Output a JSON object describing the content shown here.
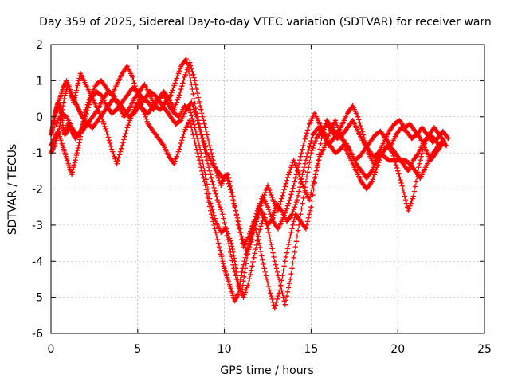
{
  "chart_data": {
    "type": "scatter",
    "title": "Day 359 of 2025, Sidereal Day-to-day VTEC variation (SDTVAR) for receiver warn",
    "xlabel": "GPS time / hours",
    "ylabel": "SDTVAR / TECUs",
    "xlim": [
      0,
      25
    ],
    "ylim": [
      -6,
      2
    ],
    "xticks": [
      "0",
      "5",
      "10",
      "15",
      "20",
      "25"
    ],
    "yticks": [
      "-6",
      "-5",
      "-4",
      "-3",
      "-2",
      "-1",
      "0",
      "1",
      "2"
    ],
    "grid": true,
    "marker": "plus",
    "color": "#ff0000",
    "series": [
      {
        "x": [
          0.0,
          0.1,
          0.2,
          0.3,
          0.4,
          0.5,
          0.6,
          0.7,
          0.8,
          0.9,
          1.0,
          1.2,
          1.4,
          1.6,
          1.8,
          2.0,
          2.3,
          2.6,
          2.9,
          3.2,
          3.5,
          3.8,
          4.1,
          4.4,
          4.7,
          5.0,
          5.3,
          5.6,
          5.9,
          6.2,
          6.5,
          6.8,
          7.1,
          7.4,
          7.7,
          8.0,
          8.3,
          8.6,
          8.9,
          9.2,
          9.5,
          9.8,
          10.1,
          10.4,
          10.6,
          10.8,
          11.0,
          11.2,
          11.5,
          11.8,
          12.0,
          12.2,
          12.5,
          12.8,
          13.0,
          13.3,
          13.6,
          13.9,
          14.2,
          14.5,
          14.8,
          15.1,
          15.4,
          15.7,
          16.0,
          16.3,
          16.6,
          16.9,
          17.2,
          17.5,
          17.8,
          18.1,
          18.4,
          18.7,
          19.0,
          19.3,
          19.6,
          19.9,
          20.2,
          20.5,
          20.8,
          21.1,
          21.4,
          21.7,
          22.0,
          22.3,
          22.6,
          22.9
        ],
        "y": [
          -0.5,
          -0.3,
          0.0,
          0.2,
          0.4,
          0.3,
          0.1,
          -0.3,
          -0.5,
          -0.4,
          -0.2,
          -0.4,
          -0.6,
          -0.5,
          -0.3,
          0.0,
          0.5,
          0.7,
          0.6,
          0.3,
          0.1,
          0.2,
          0.4,
          0.6,
          0.8,
          0.7,
          0.5,
          0.4,
          0.2,
          0.5,
          0.6,
          0.3,
          0.1,
          0.0,
          0.3,
          0.2,
          -0.3,
          -0.9,
          -1.6,
          -2.4,
          -2.9,
          -3.2,
          -3.1,
          -3.5,
          -4.0,
          -4.6,
          -4.9,
          -4.2,
          -3.4,
          -2.9,
          -2.5,
          -2.7,
          -3.0,
          -2.8,
          -2.4,
          -2.6,
          -2.9,
          -2.7,
          -2.3,
          -1.6,
          -1.0,
          -0.5,
          -0.3,
          -0.5,
          -0.8,
          -0.6,
          -0.4,
          -0.7,
          -0.9,
          -1.2,
          -1.1,
          -0.9,
          -0.7,
          -0.5,
          -0.4,
          -0.6,
          -0.8,
          -0.5,
          -0.3,
          -0.4,
          -0.6,
          -0.5,
          -0.3,
          -0.5,
          -0.7,
          -0.6,
          -0.4,
          -0.6
        ]
      },
      {
        "x": [
          0.0,
          0.2,
          0.4,
          0.6,
          0.8,
          1.0,
          1.2,
          1.4,
          1.6,
          1.8,
          2.0,
          2.3,
          2.6,
          2.9,
          3.2,
          3.5,
          3.8,
          4.1,
          4.4,
          4.7,
          5.0,
          5.3,
          5.6,
          5.9,
          6.2,
          6.5,
          6.8,
          7.1,
          7.4,
          7.7,
          8.0,
          8.3,
          8.6,
          8.9,
          9.2,
          9.5,
          9.8,
          10.0,
          10.2,
          10.4,
          10.6,
          10.8,
          11.0,
          11.3,
          11.6,
          11.9,
          12.2,
          12.5,
          12.8,
          13.1,
          13.4,
          13.7,
          14.0,
          14.3,
          14.6,
          14.9,
          15.2,
          15.5,
          15.8,
          16.1,
          16.4,
          16.7,
          17.0,
          17.3,
          17.6,
          17.9,
          18.2,
          18.5,
          18.8,
          19.1,
          19.4,
          19.7,
          20.0,
          20.3,
          20.6,
          20.9,
          21.2,
          21.5,
          21.8,
          22.1,
          22.4,
          22.7
        ],
        "y": [
          -0.8,
          -0.6,
          -0.4,
          -0.7,
          -1.0,
          -1.3,
          -1.6,
          -1.2,
          -0.8,
          -0.3,
          0.2,
          0.6,
          0.9,
          1.0,
          0.8,
          0.6,
          0.9,
          1.2,
          1.4,
          1.1,
          0.6,
          0.2,
          -0.2,
          -0.4,
          -0.6,
          -0.8,
          -1.1,
          -1.3,
          -0.9,
          -0.4,
          -0.1,
          -0.7,
          -1.3,
          -1.9,
          -2.6,
          -3.2,
          -3.8,
          -4.2,
          -4.5,
          -4.8,
          -5.1,
          -4.9,
          -4.3,
          -3.7,
          -3.1,
          -2.6,
          -2.2,
          -2.5,
          -2.9,
          -3.1,
          -2.8,
          -2.4,
          -1.9,
          -1.3,
          -0.7,
          -0.2,
          0.1,
          -0.2,
          -0.5,
          -0.8,
          -1.0,
          -0.9,
          -0.7,
          -1.0,
          -1.3,
          -1.5,
          -1.7,
          -1.5,
          -1.2,
          -1.0,
          -0.8,
          -0.9,
          -1.1,
          -1.3,
          -1.5,
          -1.2,
          -1.0,
          -0.7,
          -0.5,
          -0.6,
          -0.8,
          -0.7
        ]
      },
      {
        "x": [
          0.0,
          0.2,
          0.4,
          0.6,
          0.8,
          1.0,
          1.2,
          1.4,
          1.6,
          1.8,
          2.1,
          2.4,
          2.7,
          3.0,
          3.3,
          3.6,
          3.9,
          4.2,
          4.5,
          4.8,
          5.1,
          5.4,
          5.7,
          6.0,
          6.3,
          6.6,
          6.9,
          7.2,
          7.5,
          7.8,
          8.1,
          8.4,
          8.7,
          9.0,
          9.3,
          9.6,
          9.9,
          10.2,
          10.5,
          10.8,
          11.1,
          11.4,
          11.7,
          12.0,
          12.3,
          12.6,
          12.9,
          13.2,
          13.5,
          13.8,
          14.1,
          14.4,
          14.7,
          15.0,
          15.3,
          15.6,
          15.9,
          16.2,
          16.5,
          16.8,
          17.1,
          17.4,
          17.7,
          18.0,
          18.3,
          18.6,
          18.9,
          19.2,
          19.5,
          19.8,
          20.1,
          20.4,
          20.7,
          21.0,
          21.3,
          21.6,
          21.9,
          22.2,
          22.5,
          22.8
        ],
        "y": [
          -1.0,
          -0.8,
          -0.5,
          0.0,
          0.6,
          0.9,
          0.6,
          0.4,
          0.2,
          0.0,
          -0.2,
          -0.3,
          -0.1,
          0.1,
          0.3,
          0.5,
          0.4,
          0.2,
          0.0,
          0.1,
          0.3,
          0.5,
          0.7,
          0.6,
          0.4,
          0.2,
          0.0,
          -0.2,
          -0.1,
          0.2,
          0.4,
          0.0,
          -0.6,
          -1.2,
          -1.8,
          -2.3,
          -2.7,
          -3.4,
          -4.1,
          -4.7,
          -5.0,
          -4.6,
          -3.9,
          -3.2,
          -2.7,
          -3.3,
          -4.0,
          -4.6,
          -5.2,
          -4.5,
          -3.6,
          -2.7,
          -1.8,
          -1.0,
          -0.6,
          -0.4,
          -0.2,
          -0.4,
          -0.6,
          -0.5,
          -0.3,
          -0.1,
          -0.4,
          -0.7,
          -0.9,
          -1.1,
          -1.0,
          -1.1,
          -1.2,
          -1.2,
          -1.2,
          -1.2,
          -1.3,
          -1.5,
          -1.7,
          -1.4,
          -1.1,
          -0.9,
          -0.7,
          -0.8
        ]
      },
      {
        "x": [
          0.3,
          0.6,
          0.9,
          1.2,
          1.5,
          1.8,
          2.1,
          2.4,
          2.7,
          3.0,
          3.3,
          3.6,
          3.9,
          4.2,
          4.5,
          4.8,
          5.1,
          5.4,
          5.7,
          6.0,
          6.3,
          6.6,
          6.9,
          7.2,
          7.5,
          7.8,
          8.1,
          8.4,
          8.7,
          9.0,
          9.3,
          9.6,
          9.9,
          10.2,
          10.5,
          10.8,
          11.1,
          11.4,
          11.7,
          12.0,
          12.3,
          12.6,
          12.9,
          13.2,
          13.5,
          13.8,
          14.1,
          14.4,
          14.7,
          15.0,
          15.3,
          15.6,
          15.9,
          16.2,
          16.5,
          16.8,
          17.1,
          17.4,
          17.7,
          18.0,
          18.3,
          18.6,
          18.9,
          19.2,
          19.5,
          19.8,
          20.1,
          20.4,
          20.7,
          21.0,
          21.3,
          21.6,
          21.9,
          22.2,
          22.5
        ],
        "y": [
          -0.2,
          0.1,
          0.0,
          -0.3,
          -0.5,
          -0.4,
          -0.2,
          0.0,
          0.2,
          0.5,
          0.7,
          0.6,
          0.3,
          0.0,
          0.2,
          0.5,
          0.7,
          0.9,
          0.6,
          0.3,
          0.2,
          0.4,
          0.6,
          1.0,
          1.4,
          1.6,
          0.9,
          0.1,
          -0.5,
          -1.0,
          -1.3,
          -1.5,
          -1.7,
          -1.6,
          -2.2,
          -3.0,
          -3.6,
          -3.3,
          -2.9,
          -3.5,
          -4.2,
          -4.8,
          -5.3,
          -4.8,
          -4.0,
          -3.3,
          -2.7,
          -2.9,
          -3.1,
          -2.5,
          -1.5,
          -0.6,
          -0.1,
          -0.3,
          -0.5,
          -0.2,
          0.1,
          0.3,
          0.0,
          -0.5,
          -1.0,
          -1.3,
          -1.0,
          -0.7,
          -0.4,
          -0.2,
          -0.1,
          -0.3,
          -0.2,
          -0.4,
          -0.6,
          -0.9,
          -1.2,
          -1.0,
          -0.8
        ]
      },
      {
        "x": [
          0.1,
          0.3,
          0.5,
          0.7,
          0.9,
          1.1,
          1.3,
          1.5,
          1.7,
          2.0,
          2.3,
          2.6,
          2.9,
          3.2,
          3.5,
          3.8,
          4.1,
          4.4,
          4.7,
          5.0,
          5.3,
          5.6,
          5.9,
          6.2,
          6.5,
          6.8,
          7.1,
          7.4,
          7.7,
          8.0,
          8.3,
          8.6,
          8.9,
          9.2,
          9.5,
          9.8,
          10.1,
          10.4,
          10.7,
          11.0,
          11.3,
          11.6,
          11.9,
          12.2,
          12.5,
          12.8,
          13.1,
          13.4,
          13.7,
          14.0,
          14.3,
          14.6,
          14.9,
          15.2,
          15.5,
          15.8,
          16.1,
          16.4,
          16.7,
          17.0,
          17.3,
          17.6,
          17.9,
          18.2,
          18.5,
          18.8,
          19.1,
          19.4,
          19.7,
          20.0,
          20.3,
          20.6,
          20.9,
          21.2,
          21.5,
          21.8,
          22.1,
          22.4,
          22.7
        ],
        "y": [
          -0.3,
          0.2,
          0.5,
          0.8,
          1.0,
          0.7,
          0.4,
          0.8,
          1.2,
          0.9,
          0.6,
          0.3,
          0.0,
          -0.4,
          -0.9,
          -1.3,
          -0.8,
          -0.3,
          0.1,
          0.4,
          0.2,
          0.1,
          0.3,
          0.5,
          0.7,
          0.5,
          0.2,
          0.6,
          1.1,
          1.5,
          1.0,
          0.3,
          -0.3,
          -0.9,
          -1.5,
          -1.9,
          -1.6,
          -2.1,
          -2.7,
          -3.3,
          -3.8,
          -3.4,
          -2.8,
          -2.3,
          -1.9,
          -2.3,
          -2.6,
          -2.1,
          -1.6,
          -1.2,
          -1.6,
          -2.0,
          -2.3,
          -1.7,
          -1.1,
          -0.8,
          -0.4,
          -0.1,
          -0.5,
          -0.9,
          -1.2,
          -1.5,
          -1.8,
          -2.0,
          -1.8,
          -1.4,
          -1.0,
          -0.8,
          -1.0,
          -1.5,
          -2.0,
          -2.6,
          -2.2,
          -1.4,
          -0.8,
          -0.5,
          -0.3,
          -0.5,
          -0.7
        ]
      }
    ]
  }
}
